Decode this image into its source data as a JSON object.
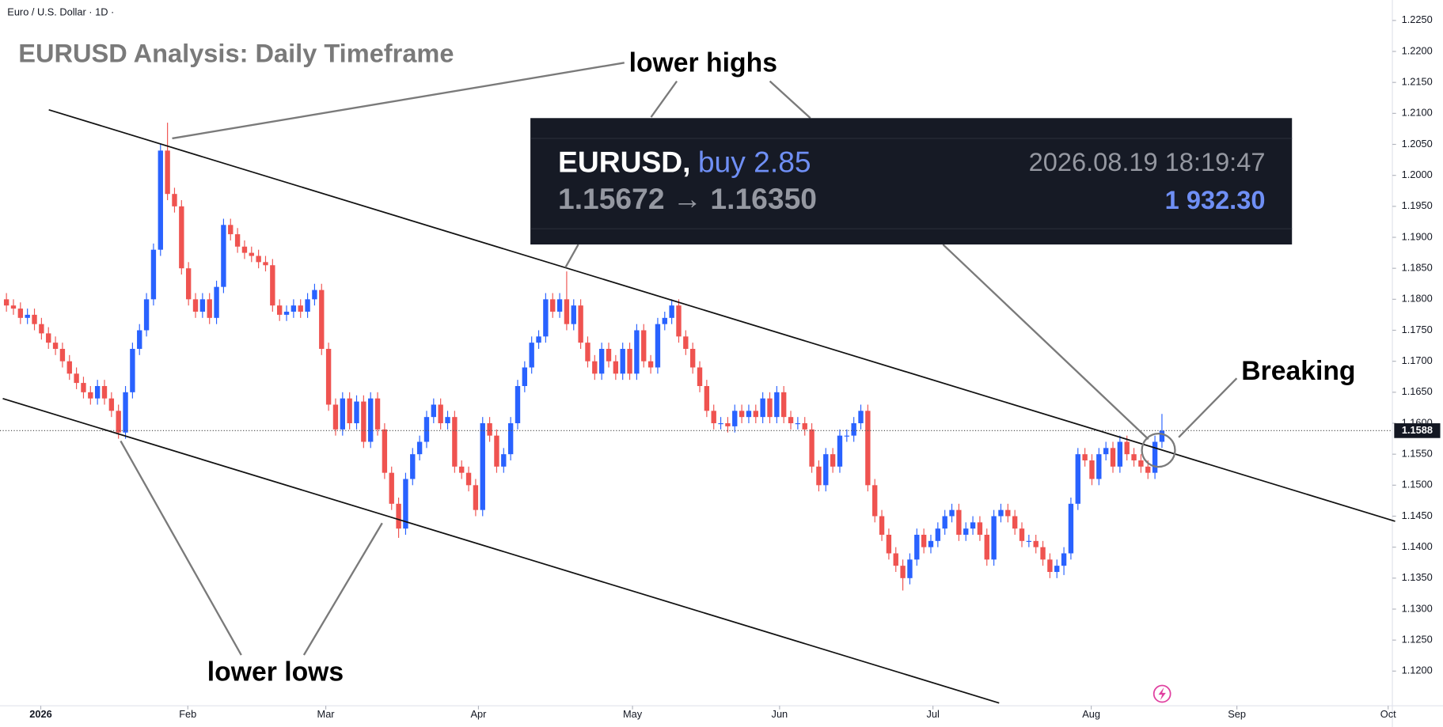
{
  "chart_data": {
    "type": "candlestick",
    "subtitle": "Euro / U.S. Dollar · 1D ·",
    "title": "EURUSD Analysis: Daily Timeframe",
    "annotations": [
      "lower highs",
      "lower lows",
      "Breaking"
    ],
    "trade_box": {
      "symbol": "EURUSD,",
      "action": "buy 2.85",
      "time": "2026.08.19 18:19:47",
      "prices": "1.15672 → 1.16350",
      "profit": "1 932.30"
    },
    "up_color": "#2962ff",
    "down_color": "#ef5350",
    "grid": false,
    "xlim": [
      -0.92,
      197.9
    ],
    "xticks": [
      {
        "value": 4.9,
        "label": "2026"
      },
      {
        "value": 25.9,
        "label": "Feb"
      },
      {
        "value": 45.6,
        "label": "Mar"
      },
      {
        "value": 67.4,
        "label": "Apr"
      },
      {
        "value": 89.4,
        "label": "May"
      },
      {
        "value": 110.4,
        "label": "Jun"
      },
      {
        "value": 132.3,
        "label": "Jul"
      },
      {
        "value": 154.9,
        "label": "Aug"
      },
      {
        "value": 175.7,
        "label": "Sep"
      },
      {
        "value": 197.3,
        "label": "Oct"
      }
    ],
    "ylim": [
      1.1144,
      1.2283
    ],
    "yticks": [
      {
        "value": 1.12,
        "label": "1.1200"
      },
      {
        "value": 1.125,
        "label": "1.1250"
      },
      {
        "value": 1.13,
        "label": "1.1300"
      },
      {
        "value": 1.135,
        "label": "1.1350"
      },
      {
        "value": 1.14,
        "label": "1.1400"
      },
      {
        "value": 1.145,
        "label": "1.1450"
      },
      {
        "value": 1.15,
        "label": "1.1500"
      },
      {
        "value": 1.155,
        "label": "1.1550"
      },
      {
        "value": 1.16,
        "label": "1.1600"
      },
      {
        "value": 1.165,
        "label": "1.1650"
      },
      {
        "value": 1.17,
        "label": "1.1700"
      },
      {
        "value": 1.175,
        "label": "1.1750"
      },
      {
        "value": 1.18,
        "label": "1.1800"
      },
      {
        "value": 1.185,
        "label": "1.1850"
      },
      {
        "value": 1.19,
        "label": "1.1900"
      },
      {
        "value": 1.195,
        "label": "1.1950"
      },
      {
        "value": 1.2,
        "label": "1.2000"
      },
      {
        "value": 1.205,
        "label": "1.2050"
      },
      {
        "value": 1.21,
        "label": "1.2100"
      },
      {
        "value": 1.215,
        "label": "1.2150"
      },
      {
        "value": 1.22,
        "label": "1.2200"
      },
      {
        "value": 1.225,
        "label": "1.2250"
      }
    ],
    "open": [
      1.18,
      1.179,
      1.1785,
      1.177,
      1.1775,
      1.176,
      1.1745,
      1.173,
      1.172,
      1.17,
      1.168,
      1.1665,
      1.165,
      1.164,
      1.166,
      1.164,
      1.162,
      1.1585,
      1.165,
      1.172,
      1.175,
      1.18,
      1.188,
      1.204,
      1.197,
      1.195,
      1.185,
      1.18,
      1.178,
      1.18,
      1.177,
      1.182,
      1.192,
      1.1905,
      1.1885,
      1.1875,
      1.187,
      1.186,
      1.1855,
      1.179,
      1.1775,
      1.178,
      1.179,
      1.178,
      1.18,
      1.1815,
      1.172,
      1.163,
      1.159,
      1.164,
      1.16,
      1.1635,
      1.157,
      1.164,
      1.159,
      1.152,
      1.147,
      1.143,
      1.151,
      1.155,
      1.157,
      1.161,
      1.163,
      1.16,
      1.161,
      1.153,
      1.152,
      1.15,
      1.146,
      1.16,
      1.158,
      1.153,
      1.155,
      1.16,
      1.166,
      1.169,
      1.173,
      1.174,
      1.18,
      1.178,
      1.18,
      1.176,
      1.179,
      1.173,
      1.17,
      1.168,
      1.172,
      1.17,
      1.168,
      1.172,
      1.168,
      1.175,
      1.17,
      1.169,
      1.176,
      1.177,
      1.179,
      1.174,
      1.172,
      1.169,
      1.166,
      1.162,
      1.16,
      1.16,
      1.1595,
      1.162,
      1.161,
      1.162,
      1.161,
      1.164,
      1.161,
      1.165,
      1.161,
      1.16,
      1.16,
      1.159,
      1.153,
      1.15,
      1.155,
      1.153,
      1.158,
      1.158,
      1.16,
      1.162,
      1.15,
      1.145,
      1.142,
      1.139,
      1.137,
      1.135,
      1.138,
      1.142,
      1.14,
      1.141,
      1.143,
      1.145,
      1.146,
      1.142,
      1.143,
      1.144,
      1.142,
      1.138,
      1.145,
      1.146,
      1.145,
      1.143,
      1.141,
      1.141,
      1.14,
      1.138,
      1.136,
      1.137,
      1.139,
      1.147,
      1.155,
      1.154,
      1.151,
      1.155,
      1.156,
      1.153,
      1.157,
      1.155,
      1.154,
      1.153,
      1.152,
      1.157
    ],
    "high": [
      1.181,
      1.18,
      1.1795,
      1.1785,
      1.1785,
      1.177,
      1.1755,
      1.174,
      1.173,
      1.171,
      1.169,
      1.1675,
      1.166,
      1.167,
      1.167,
      1.165,
      1.163,
      1.166,
      1.173,
      1.176,
      1.181,
      1.189,
      1.205,
      1.2085,
      1.198,
      1.196,
      1.186,
      1.181,
      1.181,
      1.181,
      1.183,
      1.193,
      1.193,
      1.1915,
      1.1895,
      1.1885,
      1.188,
      1.187,
      1.1865,
      1.18,
      1.179,
      1.18,
      1.18,
      1.181,
      1.1825,
      1.1825,
      1.173,
      1.164,
      1.165,
      1.165,
      1.1645,
      1.1645,
      1.165,
      1.165,
      1.16,
      1.153,
      1.148,
      1.152,
      1.156,
      1.158,
      1.162,
      1.164,
      1.164,
      1.162,
      1.162,
      1.154,
      1.153,
      1.151,
      1.161,
      1.161,
      1.159,
      1.156,
      1.161,
      1.167,
      1.17,
      1.174,
      1.175,
      1.181,
      1.181,
      1.181,
      1.1845,
      1.18,
      1.18,
      1.174,
      1.171,
      1.173,
      1.173,
      1.171,
      1.173,
      1.173,
      1.176,
      1.176,
      1.171,
      1.177,
      1.178,
      1.18,
      1.18,
      1.175,
      1.173,
      1.17,
      1.167,
      1.163,
      1.161,
      1.161,
      1.163,
      1.163,
      1.163,
      1.163,
      1.165,
      1.165,
      1.166,
      1.166,
      1.162,
      1.161,
      1.161,
      1.16,
      1.154,
      1.156,
      1.156,
      1.159,
      1.159,
      1.161,
      1.163,
      1.163,
      1.151,
      1.146,
      1.143,
      1.14,
      1.138,
      1.139,
      1.143,
      1.143,
      1.142,
      1.144,
      1.146,
      1.147,
      1.147,
      1.144,
      1.145,
      1.145,
      1.143,
      1.146,
      1.147,
      1.147,
      1.146,
      1.144,
      1.142,
      1.142,
      1.141,
      1.139,
      1.138,
      1.14,
      1.148,
      1.156,
      1.156,
      1.155,
      1.156,
      1.157,
      1.157,
      1.158,
      1.158,
      1.156,
      1.155,
      1.154,
      1.158,
      1.1615
    ],
    "low": [
      1.178,
      1.1775,
      1.176,
      1.176,
      1.175,
      1.1735,
      1.172,
      1.171,
      1.169,
      1.167,
      1.1655,
      1.164,
      1.163,
      1.163,
      1.163,
      1.161,
      1.1575,
      1.1575,
      1.164,
      1.171,
      1.174,
      1.179,
      1.187,
      1.196,
      1.194,
      1.184,
      1.179,
      1.177,
      1.177,
      1.176,
      1.176,
      1.181,
      1.1895,
      1.1875,
      1.1865,
      1.186,
      1.185,
      1.1845,
      1.178,
      1.1765,
      1.1765,
      1.177,
      1.177,
      1.177,
      1.179,
      1.171,
      1.162,
      1.158,
      1.158,
      1.159,
      1.159,
      1.156,
      1.156,
      1.158,
      1.151,
      1.146,
      1.1415,
      1.142,
      1.15,
      1.154,
      1.156,
      1.16,
      1.159,
      1.159,
      1.152,
      1.151,
      1.149,
      1.145,
      1.145,
      1.157,
      1.152,
      1.152,
      1.154,
      1.159,
      1.165,
      1.168,
      1.172,
      1.173,
      1.177,
      1.177,
      1.175,
      1.175,
      1.172,
      1.169,
      1.167,
      1.167,
      1.169,
      1.167,
      1.167,
      1.167,
      1.167,
      1.169,
      1.168,
      1.168,
      1.175,
      1.176,
      1.173,
      1.171,
      1.168,
      1.165,
      1.161,
      1.159,
      1.159,
      1.1585,
      1.1585,
      1.16,
      1.16,
      1.16,
      1.16,
      1.16,
      1.16,
      1.16,
      1.159,
      1.159,
      1.158,
      1.152,
      1.149,
      1.149,
      1.152,
      1.152,
      1.157,
      1.157,
      1.159,
      1.149,
      1.144,
      1.141,
      1.138,
      1.136,
      1.133,
      1.134,
      1.137,
      1.139,
      1.139,
      1.14,
      1.142,
      1.144,
      1.141,
      1.141,
      1.142,
      1.141,
      1.137,
      1.137,
      1.144,
      1.144,
      1.142,
      1.14,
      1.14,
      1.139,
      1.137,
      1.135,
      1.135,
      1.1355,
      1.138,
      1.146,
      1.153,
      1.15,
      1.15,
      1.154,
      1.152,
      1.152,
      1.154,
      1.153,
      1.152,
      1.151,
      1.151,
      1.156
    ],
    "close": [
      1.179,
      1.1785,
      1.177,
      1.1775,
      1.176,
      1.1745,
      1.173,
      1.172,
      1.17,
      1.168,
      1.1665,
      1.165,
      1.164,
      1.166,
      1.164,
      1.162,
      1.1585,
      1.165,
      1.172,
      1.175,
      1.18,
      1.188,
      1.204,
      1.197,
      1.195,
      1.185,
      1.18,
      1.178,
      1.18,
      1.177,
      1.182,
      1.192,
      1.1905,
      1.1885,
      1.1875,
      1.187,
      1.186,
      1.1855,
      1.179,
      1.1775,
      1.178,
      1.179,
      1.178,
      1.18,
      1.1815,
      1.172,
      1.163,
      1.159,
      1.164,
      1.16,
      1.1635,
      1.157,
      1.164,
      1.159,
      1.152,
      1.147,
      1.143,
      1.151,
      1.155,
      1.157,
      1.161,
      1.163,
      1.16,
      1.161,
      1.153,
      1.152,
      1.15,
      1.146,
      1.16,
      1.158,
      1.153,
      1.155,
      1.16,
      1.166,
      1.169,
      1.173,
      1.174,
      1.18,
      1.178,
      1.18,
      1.176,
      1.179,
      1.173,
      1.17,
      1.168,
      1.172,
      1.17,
      1.168,
      1.172,
      1.168,
      1.175,
      1.17,
      1.169,
      1.176,
      1.177,
      1.179,
      1.174,
      1.172,
      1.169,
      1.166,
      1.162,
      1.16,
      1.16,
      1.1595,
      1.162,
      1.161,
      1.162,
      1.161,
      1.164,
      1.161,
      1.165,
      1.161,
      1.16,
      1.16,
      1.159,
      1.153,
      1.15,
      1.155,
      1.153,
      1.158,
      1.158,
      1.16,
      1.162,
      1.15,
      1.145,
      1.142,
      1.139,
      1.137,
      1.135,
      1.138,
      1.142,
      1.14,
      1.141,
      1.143,
      1.145,
      1.146,
      1.142,
      1.143,
      1.144,
      1.142,
      1.138,
      1.145,
      1.146,
      1.145,
      1.143,
      1.141,
      1.141,
      1.14,
      1.138,
      1.136,
      1.137,
      1.139,
      1.147,
      1.155,
      1.154,
      1.151,
      1.155,
      1.156,
      1.153,
      1.157,
      1.155,
      1.154,
      1.153,
      1.152,
      1.157,
      1.1588
    ]
  }
}
